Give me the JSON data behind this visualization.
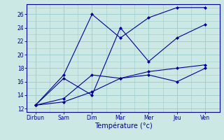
{
  "title": "",
  "xlabel": "Température (°c)",
  "days": [
    "Dirbun",
    "Sam",
    "Dim",
    "Mar",
    "Mer",
    "Jeu",
    "Ven"
  ],
  "day_positions": [
    0,
    1,
    2,
    3,
    4,
    5,
    6
  ],
  "ylim": [
    11.5,
    27.5
  ],
  "yticks": [
    12,
    14,
    16,
    18,
    20,
    22,
    24,
    26
  ],
  "background_color": "#cce8e4",
  "grid_color": "#99cccc",
  "line_color": "#000099",
  "lines": [
    [
      12.5,
      17.0,
      26.0,
      22.5,
      25.5,
      27.0,
      27.0
    ],
    [
      12.5,
      16.5,
      14.0,
      24.0,
      19.0,
      22.5,
      24.5
    ],
    [
      12.5,
      13.5,
      17.0,
      16.5,
      17.5,
      18.0,
      18.5
    ],
    [
      12.5,
      13.0,
      14.5,
      16.5,
      17.0,
      16.0,
      18.0
    ]
  ],
  "figsize": [
    3.2,
    2.0
  ],
  "dpi": 100,
  "tick_fontsize": 5.5,
  "xlabel_fontsize": 7.0
}
